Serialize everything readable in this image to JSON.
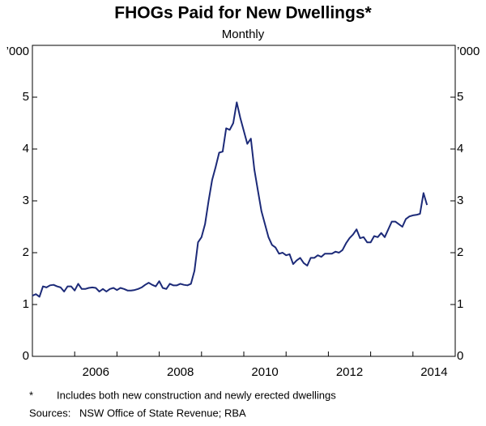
{
  "chart_data": {
    "type": "line",
    "title": "FHOGs Paid for New Dwellings*",
    "subtitle": "Monthly",
    "y_unit_label": "’000",
    "x": [
      2005.0,
      2005.083,
      2005.167,
      2005.25,
      2005.333,
      2005.417,
      2005.5,
      2005.583,
      2005.667,
      2005.75,
      2005.833,
      2005.917,
      2006.0,
      2006.083,
      2006.167,
      2006.25,
      2006.333,
      2006.417,
      2006.5,
      2006.583,
      2006.667,
      2006.75,
      2006.833,
      2006.917,
      2007.0,
      2007.083,
      2007.167,
      2007.25,
      2007.333,
      2007.417,
      2007.5,
      2007.583,
      2007.667,
      2007.75,
      2007.833,
      2007.917,
      2008.0,
      2008.083,
      2008.167,
      2008.25,
      2008.333,
      2008.417,
      2008.5,
      2008.583,
      2008.667,
      2008.75,
      2008.833,
      2008.917,
      2009.0,
      2009.083,
      2009.167,
      2009.25,
      2009.333,
      2009.417,
      2009.5,
      2009.583,
      2009.667,
      2009.75,
      2009.833,
      2009.917,
      2010.0,
      2010.083,
      2010.167,
      2010.25,
      2010.333,
      2010.417,
      2010.5,
      2010.583,
      2010.667,
      2010.75,
      2010.833,
      2010.917,
      2011.0,
      2011.083,
      2011.167,
      2011.25,
      2011.333,
      2011.417,
      2011.5,
      2011.583,
      2011.667,
      2011.75,
      2011.833,
      2011.917,
      2012.0,
      2012.083,
      2012.167,
      2012.25,
      2012.333,
      2012.417,
      2012.5,
      2012.583,
      2012.667,
      2012.75,
      2012.833,
      2012.917,
      2013.0,
      2013.083,
      2013.167,
      2013.25,
      2013.333,
      2013.417,
      2013.5,
      2013.583,
      2013.667,
      2013.75,
      2013.833,
      2013.917,
      2014.0,
      2014.083,
      2014.167,
      2014.25,
      2014.333
    ],
    "series": [
      {
        "color": "#1c2a78",
        "values": [
          1.17,
          1.2,
          1.15,
          1.35,
          1.33,
          1.37,
          1.38,
          1.35,
          1.33,
          1.25,
          1.35,
          1.35,
          1.27,
          1.4,
          1.3,
          1.3,
          1.32,
          1.33,
          1.32,
          1.25,
          1.3,
          1.25,
          1.3,
          1.32,
          1.28,
          1.32,
          1.3,
          1.27,
          1.27,
          1.28,
          1.3,
          1.33,
          1.38,
          1.42,
          1.38,
          1.35,
          1.45,
          1.32,
          1.3,
          1.4,
          1.37,
          1.37,
          1.4,
          1.38,
          1.37,
          1.4,
          1.65,
          2.2,
          2.3,
          2.55,
          3.0,
          3.4,
          3.65,
          3.93,
          3.95,
          4.4,
          4.37,
          4.5,
          4.9,
          4.6,
          4.35,
          4.1,
          4.2,
          3.6,
          3.2,
          2.8,
          2.55,
          2.3,
          2.15,
          2.1,
          1.98,
          2.0,
          1.95,
          1.97,
          1.78,
          1.85,
          1.9,
          1.8,
          1.75,
          1.9,
          1.9,
          1.95,
          1.92,
          1.98,
          1.98,
          1.98,
          2.02,
          2.0,
          2.05,
          2.18,
          2.28,
          2.35,
          2.45,
          2.28,
          2.3,
          2.2,
          2.2,
          2.32,
          2.3,
          2.38,
          2.3,
          2.45,
          2.6,
          2.6,
          2.55,
          2.5,
          2.65,
          2.7,
          2.72,
          2.73,
          2.75,
          3.15,
          2.92
        ]
      }
    ],
    "xlim": [
      2005,
      2015
    ],
    "xticks": [
      {
        "value": 2006.5,
        "label": "2006"
      },
      {
        "value": 2008.5,
        "label": "2008"
      },
      {
        "value": 2010.5,
        "label": "2010"
      },
      {
        "value": 2012.5,
        "label": "2012"
      },
      {
        "value": 2014.5,
        "label": "2014"
      }
    ],
    "x_tick_marks": [
      2006,
      2007,
      2008,
      2009,
      2010,
      2011,
      2012,
      2013,
      2014
    ],
    "ylim": [
      0,
      6
    ],
    "yticks": [
      0,
      1,
      2,
      3,
      4,
      5
    ],
    "grid": false,
    "notes": [
      {
        "marker": "*",
        "text": "Includes both new construction and newly erected dwellings"
      },
      {
        "marker": "Sources:",
        "text": "NSW Office of State Revenue; RBA"
      }
    ]
  }
}
